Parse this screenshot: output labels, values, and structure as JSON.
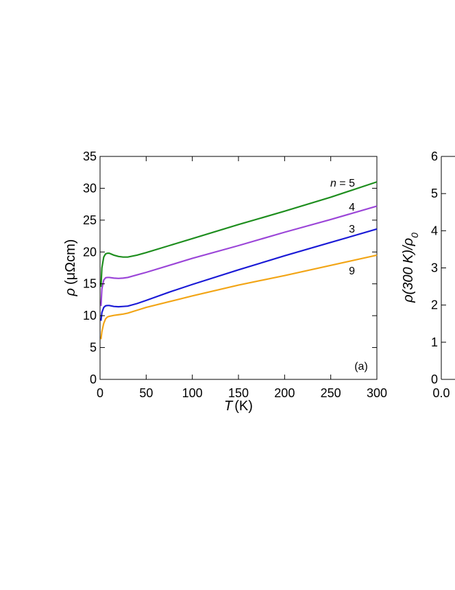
{
  "chart_data": [
    {
      "type": "line",
      "panel_label": "(a)",
      "xlabel_symbol": "T",
      "xlabel_unit": "(K)",
      "ylabel_symbol": "ρ",
      "ylabel_unit": "(μΩcm)",
      "xlim": [
        0,
        300
      ],
      "ylim": [
        0,
        35
      ],
      "xticks": [
        0,
        50,
        100,
        150,
        200,
        250,
        300
      ],
      "yticks": [
        0,
        5,
        10,
        15,
        20,
        25,
        30,
        35
      ],
      "grid": false,
      "legend_label_prefix": "n",
      "legend_label_eq": " = ",
      "series": [
        {
          "name": "5",
          "color": "#1e8e1e",
          "x": [
            1,
            2,
            4,
            6,
            8,
            10,
            15,
            20,
            25,
            30,
            40,
            50,
            75,
            100,
            150,
            200,
            250,
            300
          ],
          "y": [
            14.5,
            17.5,
            19.2,
            19.7,
            19.8,
            19.8,
            19.5,
            19.3,
            19.2,
            19.2,
            19.5,
            19.9,
            21.0,
            22.1,
            24.3,
            26.4,
            28.6,
            31.0
          ]
        },
        {
          "name": "4",
          "color": "#9b45d8",
          "x": [
            1,
            2,
            4,
            6,
            8,
            10,
            15,
            20,
            25,
            30,
            40,
            50,
            75,
            100,
            150,
            200,
            250,
            300
          ],
          "y": [
            11.5,
            14.2,
            15.6,
            15.95,
            16.0,
            16.0,
            15.9,
            15.85,
            15.9,
            16.0,
            16.4,
            16.8,
            17.9,
            19.0,
            21.0,
            23.1,
            25.1,
            27.2
          ]
        },
        {
          "name": "3",
          "color": "#1a1ad6",
          "x": [
            1,
            2,
            4,
            6,
            8,
            10,
            15,
            20,
            25,
            30,
            40,
            50,
            75,
            100,
            150,
            200,
            250,
            300
          ],
          "y": [
            9.2,
            10.5,
            11.3,
            11.55,
            11.6,
            11.6,
            11.45,
            11.4,
            11.45,
            11.5,
            11.9,
            12.4,
            13.7,
            14.9,
            17.2,
            19.4,
            21.5,
            23.6
          ]
        },
        {
          "name": "9",
          "color": "#f2a516",
          "x": [
            1,
            2,
            4,
            6,
            8,
            10,
            15,
            20,
            25,
            30,
            40,
            50,
            75,
            100,
            150,
            200,
            250,
            300
          ],
          "y": [
            6.3,
            7.5,
            8.8,
            9.5,
            9.8,
            9.9,
            10.05,
            10.15,
            10.25,
            10.4,
            10.85,
            11.3,
            12.2,
            13.1,
            14.8,
            16.3,
            17.9,
            19.5
          ]
        }
      ]
    },
    {
      "type": "line",
      "ylabel_main": "ρ(300 K)/ρ",
      "ylabel_sub": "0",
      "ylim": [
        0,
        6
      ],
      "yticks": [
        0,
        1,
        2,
        3,
        4,
        5,
        6
      ],
      "first_xtick": "0.0"
    }
  ]
}
